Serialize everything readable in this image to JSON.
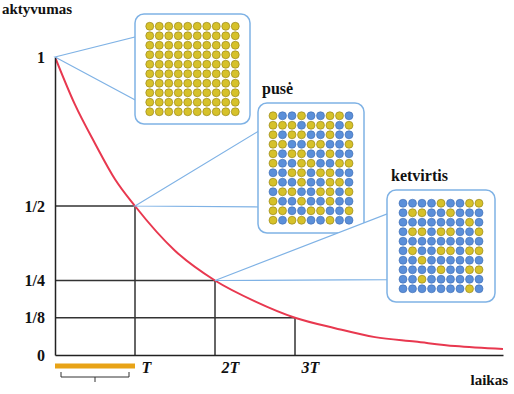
{
  "chart_data": {
    "type": "line",
    "y_label": "aktyvumas",
    "x_label": "laikas",
    "x": [
      0,
      0.25,
      0.5,
      0.75,
      1,
      1.5,
      2,
      2.5,
      3,
      3.5,
      4,
      4.5,
      5,
      5.6
    ],
    "series": [
      {
        "color": "#e8384f",
        "values": [
          1,
          0.84,
          0.71,
          0.59,
          0.5,
          0.35,
          0.25,
          0.18,
          0.125,
          0.09,
          0.06,
          0.045,
          0.03,
          0.02
        ]
      }
    ],
    "xlim": [
      0,
      5.6
    ],
    "ylim": [
      0,
      1
    ],
    "xticks": [
      {
        "value": 1,
        "label": "T"
      },
      {
        "value": 2,
        "label": "2T"
      },
      {
        "value": 3,
        "label": "3T"
      }
    ],
    "yticks": [
      0,
      {
        "value": 0.125,
        "label": "1/8"
      },
      {
        "value": 0.25,
        "label": "1/4"
      },
      {
        "value": 0.5,
        "label": "1/2"
      },
      1
    ],
    "grid": true,
    "insets": [
      {
        "x": 0,
        "y": 1,
        "fraction": 1
      },
      {
        "x": 1,
        "y": 0.5,
        "fraction": 0.5,
        "label": "pusė"
      },
      {
        "x": 2,
        "y": 0.25,
        "fraction": 0.25,
        "label": "ketvirtis"
      }
    ],
    "span": {
      "x": [
        0,
        1
      ],
      "color": "#e8a317"
    }
  }
}
